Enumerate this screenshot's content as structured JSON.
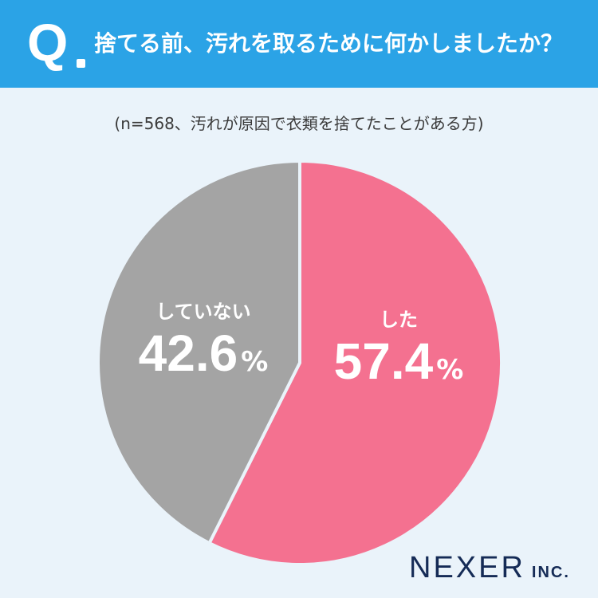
{
  "header": {
    "q_mark": "Q",
    "question": "捨てる前、汚れを取るために何かしましたか？",
    "bg_color": "#2ba3e6"
  },
  "note": "(n=568、汚れが原因で衣類を捨てたことがある方)",
  "chart_data": {
    "type": "pie",
    "title": "捨てる前、汚れを取るために何かしましたか？",
    "subtitle": "(n=568、汚れが原因で衣類を捨てたことがある方)",
    "slices": [
      {
        "label": "した",
        "value": 57.4,
        "display": "57.4",
        "unit": "%",
        "color": "#f47190"
      },
      {
        "label": "していない",
        "value": 42.6,
        "display": "42.6",
        "unit": "%",
        "color": "#a4a4a4"
      }
    ],
    "start": "12 o'clock",
    "direction": "clockwise"
  },
  "brand": {
    "name": "NEXER",
    "suffix": "INC."
  }
}
